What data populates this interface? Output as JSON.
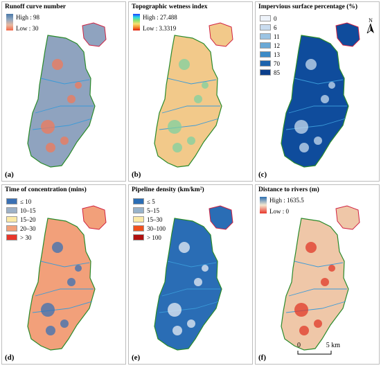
{
  "panels": [
    {
      "id": "a",
      "title": "Runoff curve number",
      "label": "(a)",
      "legend_type": "gradient",
      "high": "High : 98",
      "low": "Low : 30",
      "gradient_colors": [
        "#4a78a8",
        "#8fa7c0",
        "#e8b8a0",
        "#f26a4a"
      ],
      "fill": "#8fa3bf",
      "accent": "#f07a5a"
    },
    {
      "id": "b",
      "title": "Topographic wetness index",
      "label": "(b)",
      "legend_type": "gradient",
      "high": "High : 27.488",
      "low": "Low : 3.3319",
      "gradient_colors": [
        "#1a3cff",
        "#28d8e8",
        "#8ee070",
        "#f7e070",
        "#f39030",
        "#e02010"
      ],
      "fill": "#f2c98a",
      "accent": "#7fd0a0"
    },
    {
      "id": "c",
      "title": "Impervious surface percentage (%)",
      "label": "(c)",
      "legend_type": "classes",
      "classes": [
        {
          "label": "0",
          "color": "#eef3fa"
        },
        {
          "label": "6",
          "color": "#c9dcef"
        },
        {
          "label": "11",
          "color": "#9cc4e3"
        },
        {
          "label": "12",
          "color": "#6aa9d6"
        },
        {
          "label": "13",
          "color": "#3c8bc7"
        },
        {
          "label": "70",
          "color": "#1d63ad"
        },
        {
          "label": "85",
          "color": "#0b3f8c"
        }
      ],
      "fill": "#0f4c9c",
      "accent": "#c9dcef",
      "north": "N"
    },
    {
      "id": "d",
      "title": "Time of concentration (mins)",
      "label": "(d)",
      "legend_type": "classes",
      "classes": [
        {
          "label": "≤ 10",
          "color": "#3a70b4"
        },
        {
          "label": "10–15",
          "color": "#9db1c7"
        },
        {
          "label": "15–20",
          "color": "#fbe9a6"
        },
        {
          "label": "20–30",
          "color": "#f2a07a"
        },
        {
          "label": "> 30",
          "color": "#e8362a"
        }
      ],
      "fill": "#f2a07a",
      "accent": "#3a70b4"
    },
    {
      "id": "e",
      "title": "Pipeline density (km/km²)",
      "label": "(e)",
      "legend_type": "classes",
      "classes": [
        {
          "label": "≤ 5",
          "color": "#2a6db5"
        },
        {
          "label": "5–15",
          "color": "#98b3cb"
        },
        {
          "label": "15–30",
          "color": "#fbeaa8"
        },
        {
          "label": "30–100",
          "color": "#f0501e"
        },
        {
          "label": "> 100",
          "color": "#b01010"
        }
      ],
      "fill": "#2a6db5",
      "accent": "#e8eef5"
    },
    {
      "id": "f",
      "title": "Distance to rivers (m)",
      "label": "(f)",
      "legend_type": "gradient",
      "high": "High : 1635.5",
      "low": "Low : 0",
      "gradient_colors": [
        "#2c6fb0",
        "#f5e8d0",
        "#e8352a"
      ],
      "fill": "#efc7a8",
      "accent": "#e03828",
      "scale_left": "0",
      "scale_right": "5 km"
    }
  ]
}
